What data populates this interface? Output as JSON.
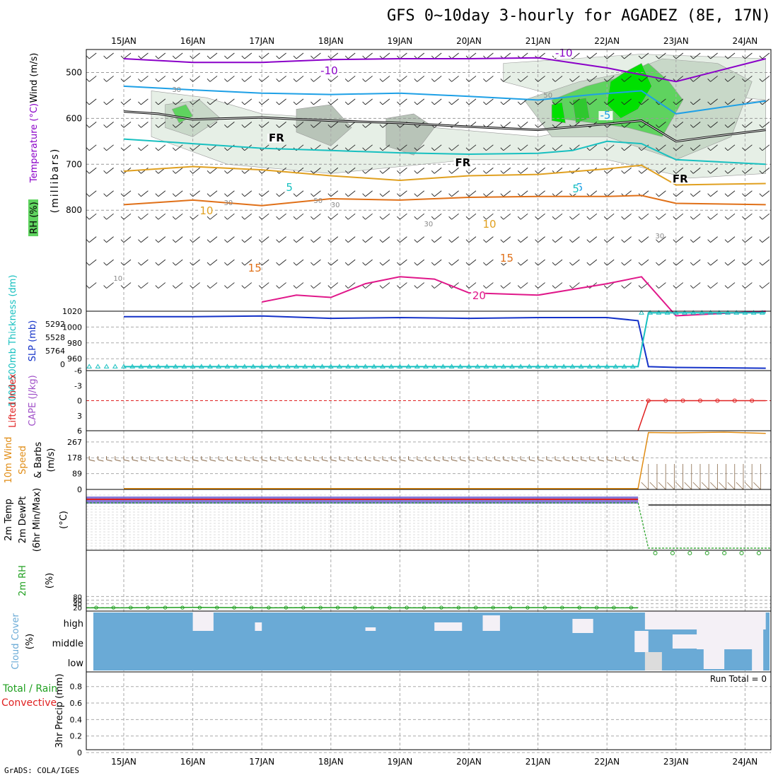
{
  "title": "GFS 0~10day 3-hourly for AGADEZ (8E, 17N)",
  "footer": "GrADS: COLA/IGES",
  "colors": {
    "rh_light": "#e6efe6",
    "rh_mid": "#c8d8c8",
    "rh_gray": "#b8c4b8",
    "rh_green": "#5fd35f",
    "rh_green2": "#2fc82f",
    "rh_bright": "#00e000",
    "t_m10": "#8a00c8",
    "t_m5": "#1ea0e6",
    "t_freeze": "#000000",
    "t_5": "#18c0c0",
    "t_10": "#e0a020",
    "t_15": "#e07018",
    "t_20": "#e0188a",
    "slp": "#1432c8",
    "thick": "#18c0c0",
    "cape": "#a050c8",
    "li": "#e02020",
    "wind": "#e08c14",
    "barb": "#8a6a4a",
    "t2m": "#e02020",
    "td2m": "#20a020",
    "rh2m": "#20a020",
    "cloud": "#6aaad6",
    "cloud_clear": "#f4f0f6",
    "cloud_gray": "#dcdcdc"
  },
  "chart_data": [
    {
      "type": "line",
      "panel": "upper-air",
      "x": [
        "15JAN",
        "16JAN",
        "17JAN",
        "18JAN",
        "19JAN",
        "20JAN",
        "21JAN",
        "22JAN",
        "23JAN",
        "24JAN"
      ],
      "xlabel_top": [
        "15JAN",
        "16JAN",
        "17JAN",
        "18JAN",
        "19JAN",
        "20JAN",
        "21JAN",
        "22JAN",
        "23JAN",
        "24JAN"
      ],
      "ylabel": "(millibars)",
      "left_labels": [
        "RH (%)",
        "Temperature (°C)",
        "Wind (m/s)"
      ],
      "yticks": [
        500,
        600,
        700,
        800
      ],
      "ylim": [
        1020,
        450
      ],
      "contour_labels": [
        "-10",
        "-10",
        "-5",
        "-5",
        "FR",
        "FR",
        "FR",
        "5",
        "5",
        "10",
        "10",
        "15",
        "15",
        "20",
        "30",
        "30",
        "30",
        "30",
        "30",
        "50",
        "50",
        "10"
      ],
      "series": [
        {
          "name": "-10",
          "key": "t_m10",
          "day": [
            0,
            1,
            2,
            3,
            4,
            5,
            6,
            7,
            8,
            9.3
          ],
          "p": [
            470,
            478,
            478,
            472,
            470,
            470,
            468,
            490,
            520,
            470
          ]
        },
        {
          "name": "-5",
          "key": "t_m5",
          "day": [
            0,
            1,
            2,
            3,
            4,
            5,
            6,
            6.8,
            7.5,
            8,
            9.3
          ],
          "p": [
            530,
            538,
            545,
            548,
            545,
            552,
            560,
            548,
            540,
            590,
            562
          ]
        },
        {
          "name": "FR",
          "key": "t_freeze",
          "day": [
            0,
            0.5,
            1,
            2,
            3,
            4,
            5,
            6,
            7,
            7.5,
            8,
            8.5,
            9.3
          ],
          "p": [
            585,
            590,
            602,
            598,
            605,
            610,
            618,
            625,
            612,
            605,
            650,
            640,
            625
          ]
        },
        {
          "name": "5",
          "key": "t_5",
          "day": [
            0,
            1,
            2,
            3,
            4,
            5,
            6,
            6.5,
            7,
            7.5,
            8,
            9.3
          ],
          "p": [
            645,
            655,
            665,
            670,
            675,
            678,
            676,
            670,
            650,
            655,
            690,
            700
          ]
        },
        {
          "name": "10",
          "key": "t_10",
          "day": [
            0,
            1,
            2,
            3,
            4,
            5,
            6,
            7,
            7.5,
            8,
            9.3
          ],
          "p": [
            715,
            705,
            712,
            725,
            735,
            725,
            722,
            710,
            702,
            745,
            742
          ]
        },
        {
          "name": "15",
          "key": "t_15",
          "day": [
            0,
            1,
            2,
            3,
            4,
            5,
            6,
            7,
            7.5,
            8,
            9.3
          ],
          "p": [
            788,
            778,
            790,
            775,
            778,
            772,
            770,
            770,
            768,
            785,
            788
          ]
        },
        {
          "name": "20",
          "key": "t_20",
          "day": [
            2.0,
            2.5,
            3,
            3.5,
            4,
            4.5,
            5,
            6,
            7,
            7.5,
            8,
            9.3
          ],
          "p": [
            1000,
            985,
            990,
            960,
            945,
            950,
            980,
            985,
            960,
            945,
            1030,
            1020
          ]
        }
      ]
    },
    {
      "type": "line",
      "panel": "slp",
      "left_labels": [
        "1000-500mb Thickness (dm)",
        "SLP (mb)"
      ],
      "yticks_slp": [
        960,
        980,
        1000,
        1020
      ],
      "yticks_thick": [
        "5292",
        "5528",
        "5764",
        "0"
      ],
      "series": [
        {
          "name": "SLP",
          "key": "slp",
          "day": [
            0,
            1,
            2,
            3,
            4,
            5,
            6,
            7,
            7.45,
            7.6,
            8,
            9.3
          ],
          "v": [
            1013,
            1013,
            1014,
            1011,
            1012,
            1011,
            1012,
            1012,
            1008,
            950,
            949,
            948
          ]
        },
        {
          "name": "Thickness",
          "key": "thick",
          "day": [
            0,
            7.45,
            7.6,
            9.3
          ],
          "v": [
            950,
            950,
            1018,
            1018
          ]
        }
      ]
    },
    {
      "type": "line",
      "panel": "stability",
      "left_labels": [
        "Lifted Index",
        "CAPE (J/kg)"
      ],
      "yticks": [
        "-6",
        "-3",
        "0",
        "3",
        "6"
      ],
      "series": [
        {
          "name": "Lifted Index",
          "key": "li",
          "day": [
            7.45,
            7.6,
            9.3
          ],
          "v": [
            6,
            0,
            0
          ]
        }
      ]
    },
    {
      "type": "line",
      "panel": "wind10m",
      "left_labels": [
        "10m Wind",
        "Speed",
        "& Barbs",
        "(m/s)"
      ],
      "yticks": [
        "0",
        "89",
        "178",
        "267"
      ],
      "series": [
        {
          "name": "Speed",
          "key": "wind",
          "day": [
            0,
            7.45,
            7.6,
            8,
            8.7,
            9.3
          ],
          "v": [
            5,
            5,
            320,
            318,
            322,
            315
          ]
        }
      ]
    },
    {
      "type": "line",
      "panel": "t2m",
      "left_labels": [
        "2m Temp",
        "2m DewPt",
        "(6hr Min/Max)",
        "(°C)"
      ]
    },
    {
      "type": "line",
      "panel": "rh2m",
      "left_labels": [
        "2m RH",
        "(%)"
      ],
      "yticks": [
        "20",
        "40",
        "60",
        "80"
      ],
      "series": [
        {
          "name": "2m RH",
          "key": "rh2m",
          "day": [
            0,
            1,
            2,
            3,
            4,
            5,
            6,
            7,
            7.45
          ],
          "v": [
            18,
            20,
            18,
            19,
            18,
            18,
            19,
            18,
            18
          ]
        }
      ]
    },
    {
      "type": "heatmap",
      "panel": "cloud",
      "left_labels": [
        "Cloud Cover",
        "(%)"
      ],
      "levels": [
        "high",
        "middle",
        "low"
      ]
    },
    {
      "type": "line",
      "panel": "precip",
      "left_labels": [
        "Total / Rain",
        "Convective",
        "3hr Precip (mm)"
      ],
      "yticks": [
        "0",
        "0.2",
        "0.4",
        "0.6",
        "0.8"
      ],
      "annotation": "Run Total = 0",
      "xlabel_bottom": [
        "15JAN",
        "16JAN",
        "17JAN",
        "18JAN",
        "19JAN",
        "20JAN",
        "21JAN",
        "22JAN",
        "23JAN",
        "24JAN"
      ]
    }
  ]
}
